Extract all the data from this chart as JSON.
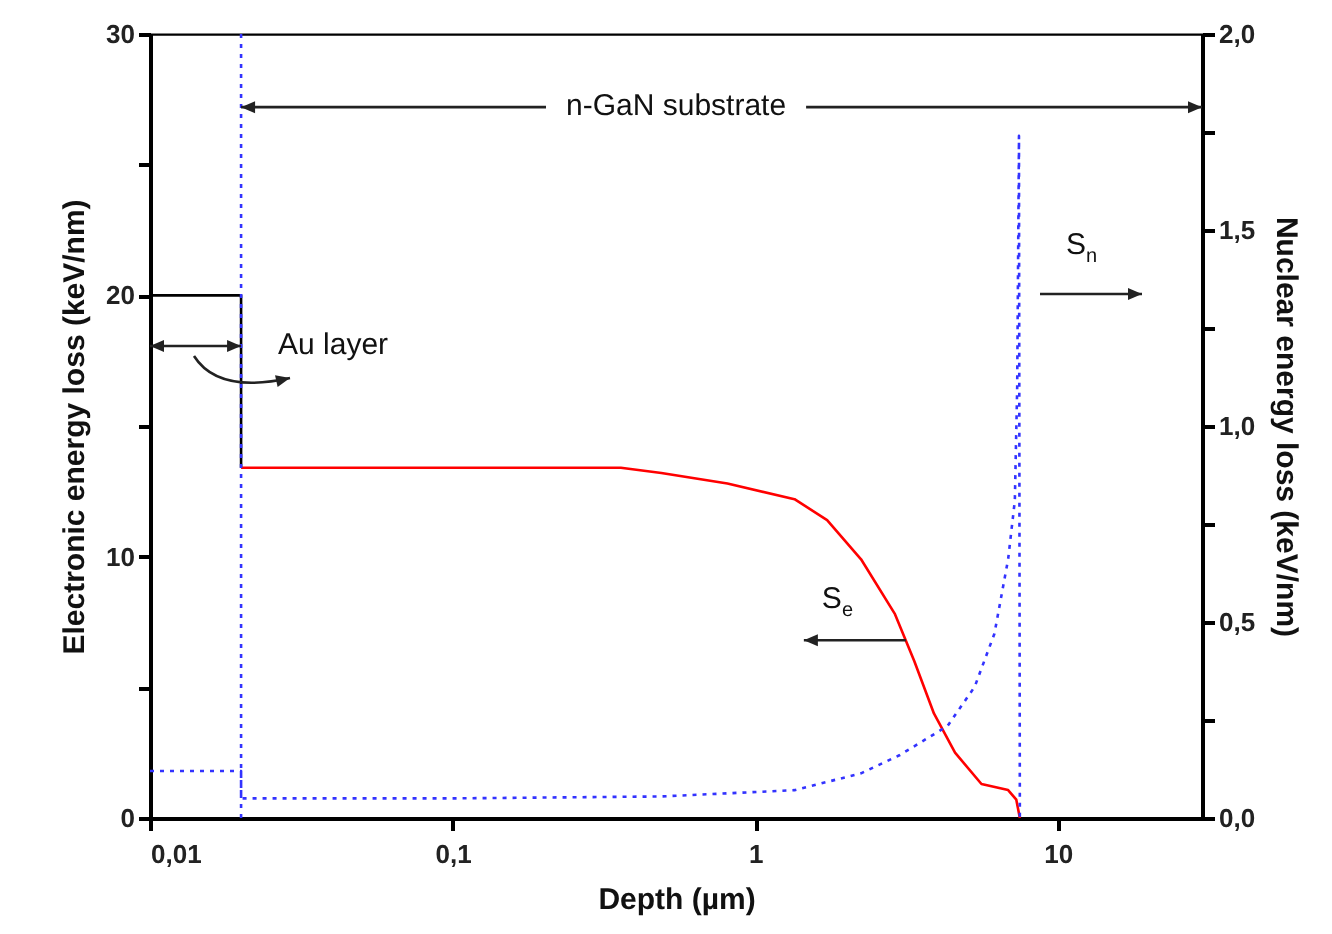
{
  "chart_data": {
    "type": "line",
    "xlabel": "Depth (µm)",
    "ylabel": "Electronic energy loss (keV/nm)",
    "y2label": "Nuclear energy loss (keV/nm)",
    "log": "x",
    "marker": "none",
    "xlim": [
      0.01,
      30
    ],
    "xticks": [
      {
        "value": 0.01,
        "label": "0,01"
      },
      {
        "value": 0.1,
        "label": "0,1"
      },
      1,
      10
    ],
    "ylim": [
      0,
      30
    ],
    "yticks": [
      0,
      {
        "value": 5,
        "label": null
      },
      10,
      {
        "value": 15,
        "label": null
      },
      20,
      {
        "value": 25,
        "label": null
      },
      30
    ],
    "y2lim": [
      0,
      2
    ],
    "y2ticks": [
      {
        "value": 0,
        "label": "0,0"
      },
      {
        "value": 0.25,
        "label": null
      },
      {
        "value": 0.5,
        "label": "0,5"
      },
      {
        "value": 0.75,
        "label": null
      },
      {
        "value": 1,
        "label": "1,0"
      },
      {
        "value": 1.25,
        "label": null
      },
      {
        "value": 1.5,
        "label": "1,5"
      },
      {
        "value": 1.75,
        "label": null
      },
      {
        "value": 2,
        "label": "2,0"
      }
    ],
    "series": [
      {
        "type": "line",
        "color": "#000000",
        "line_style": "solid",
        "x": [
          0.01,
          0.02,
          0.02
        ],
        "values": [
          20,
          20,
          13.4
        ]
      },
      {
        "type": "line",
        "color": "#ff0000",
        "line_style": "solid",
        "x": [
          0.02,
          0.36,
          0.49,
          0.81,
          1.35,
          1.73,
          2.24,
          2.9,
          3.36,
          3.9,
          4.58,
          5.6,
          6.86,
          7.3,
          7.5
        ],
        "values": [
          13.4,
          13.4,
          13.2,
          12.8,
          12.2,
          11.4,
          9.9,
          7.8,
          6.0,
          4.0,
          2.5,
          1.3,
          1.07,
          0.7,
          0
        ]
      },
      {
        "type": "line",
        "color": "#3333ff",
        "line_style": "dotted",
        "axis": "y2",
        "x": [
          0.01,
          0.02,
          0.02,
          0.1,
          0.49,
          1.35,
          2.24,
          3,
          4.33,
          5.32,
          6.18,
          6.86,
          7.22,
          7.35,
          7.45,
          7.5
        ],
        "values": [
          0.12,
          0.12,
          0.05,
          0.05,
          0.055,
          0.071,
          0.114,
          0.16,
          0.235,
          0.335,
          0.47,
          0.66,
          0.81,
          1.1,
          1.74,
          0
        ]
      }
    ],
    "ref_lines": [
      {
        "axis": "x",
        "value": 0.02,
        "color": "#3333ff",
        "line_style": "dotted"
      }
    ],
    "annotations": [
      {
        "text": "n-GaN substrate",
        "x": 0.02,
        "y": 27.2
      },
      "Au layer",
      {
        "text": "S$_{e}$",
        "x": 3.15,
        "y": 6.8
      },
      "S$_{n}$"
    ]
  }
}
